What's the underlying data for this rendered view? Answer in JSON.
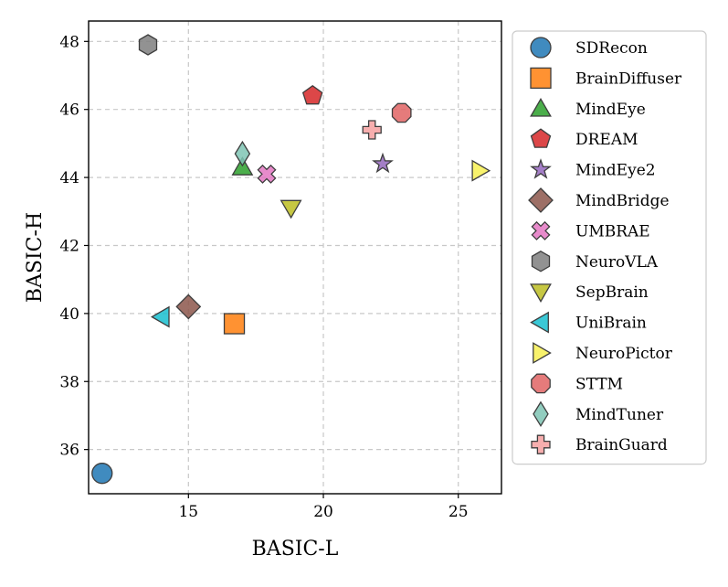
{
  "chart_data": {
    "type": "scatter",
    "xlabel": "BASIC-L",
    "ylabel": "BASIC-H",
    "xlim": [
      11.3,
      26.6
    ],
    "ylim": [
      34.7,
      48.6
    ],
    "xticks": [
      15,
      20,
      25
    ],
    "yticks": [
      36,
      38,
      40,
      42,
      44,
      46,
      48
    ],
    "grid": true,
    "legend_position": "right",
    "series": [
      {
        "name": "SDRecon",
        "x": 11.8,
        "y": 35.3,
        "marker": "circle",
        "color": "#1f77b4"
      },
      {
        "name": "BrainDiffuser",
        "x": 16.7,
        "y": 39.7,
        "marker": "square",
        "color": "#ff7f0e"
      },
      {
        "name": "MindEye",
        "x": 17.0,
        "y": 44.3,
        "marker": "triangle-up",
        "color": "#2ca02c"
      },
      {
        "name": "DREAM",
        "x": 19.6,
        "y": 46.4,
        "marker": "pentagon",
        "color": "#d62728"
      },
      {
        "name": "MindEye2",
        "x": 22.2,
        "y": 44.4,
        "marker": "star",
        "color": "#9467bd"
      },
      {
        "name": "MindBridge",
        "x": 15.0,
        "y": 40.2,
        "marker": "diamond",
        "color": "#8c564b"
      },
      {
        "name": "UMBRAE",
        "x": 17.9,
        "y": 44.1,
        "marker": "x-filled",
        "color": "#e377c2"
      },
      {
        "name": "NeuroVLA",
        "x": 13.5,
        "y": 47.9,
        "marker": "hexagon",
        "color": "#7f7f7f"
      },
      {
        "name": "SepBrain",
        "x": 18.8,
        "y": 43.1,
        "marker": "triangle-down",
        "color": "#bcbd22"
      },
      {
        "name": "UniBrain",
        "x": 14.0,
        "y": 39.9,
        "marker": "triangle-left",
        "color": "#17becf"
      },
      {
        "name": "NeuroPictor",
        "x": 25.8,
        "y": 44.2,
        "marker": "triangle-right",
        "color": "#f7f052"
      },
      {
        "name": "STTM",
        "x": 22.9,
        "y": 45.9,
        "marker": "octagon",
        "color": "#e06464"
      },
      {
        "name": "MindTuner",
        "x": 17.0,
        "y": 44.7,
        "marker": "thin-diamond",
        "color": "#7fc4b4"
      },
      {
        "name": "BrainGuard",
        "x": 21.8,
        "y": 45.4,
        "marker": "plus-filled",
        "color": "#f6a0a0"
      }
    ]
  }
}
